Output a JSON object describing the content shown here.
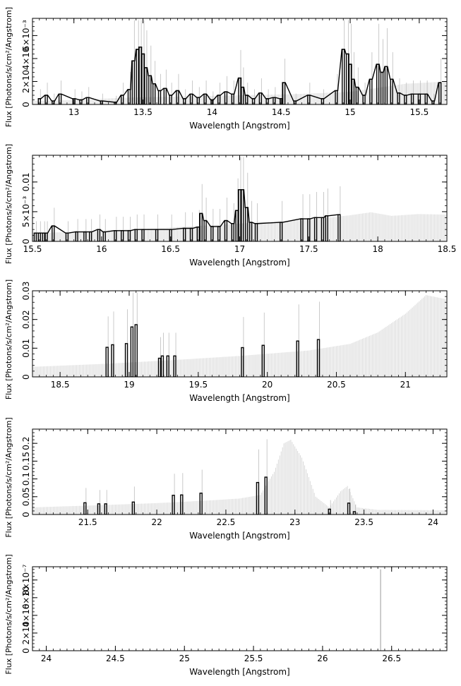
{
  "chart_data": [
    {
      "type": "line",
      "xlabel": "Wavelength [Angstrom]",
      "ylabel": "Flux [Photons/s/cm²/Angstrom]",
      "xlim": [
        12.7,
        15.7
      ],
      "ylim": [
        0,
        0.0075
      ],
      "xticks": [
        13,
        13.5,
        14,
        14.5,
        15,
        15.5
      ],
      "xtick_labels": [
        "13",
        "13.5",
        "14",
        "14.5",
        "15",
        "15.5"
      ],
      "yticks": [
        0,
        0.002,
        0.004,
        0.006
      ],
      "ytick_labels": [
        "0",
        "2×10",
        "4×10",
        "6×10⁻³"
      ],
      "model_x": [
        12.7,
        13.0,
        13.4,
        13.8,
        14.2,
        14.6,
        15.0,
        15.4,
        15.7
      ],
      "model_y": [
        0.0003,
        0.0004,
        0.0006,
        0.0007,
        0.0008,
        0.0009,
        0.0011,
        0.0018,
        0.002
      ],
      "data_x": [
        12.75,
        12.8,
        12.85,
        12.9,
        13.0,
        13.05,
        13.1,
        13.2,
        13.3,
        13.35,
        13.4,
        13.43,
        13.46,
        13.48,
        13.5,
        13.52,
        13.55,
        13.58,
        13.62,
        13.66,
        13.7,
        13.75,
        13.8,
        13.85,
        13.9,
        13.95,
        14.0,
        14.05,
        14.1,
        14.15,
        14.2,
        14.22,
        14.25,
        14.3,
        14.35,
        14.4,
        14.45,
        14.5,
        14.52,
        14.6,
        14.7,
        14.8,
        14.9,
        14.95,
        14.98,
        15.0,
        15.02,
        15.05,
        15.1,
        15.15,
        15.2,
        15.23,
        15.26,
        15.3,
        15.35,
        15.4,
        15.45,
        15.5,
        15.55,
        15.6,
        15.65
      ],
      "data_y": [
        0.0005,
        0.0008,
        0.0003,
        0.0009,
        0.0005,
        0.0004,
        0.0006,
        0.0003,
        0.0002,
        0.0008,
        0.0013,
        0.0038,
        0.0048,
        0.005,
        0.0044,
        0.0032,
        0.0025,
        0.0018,
        0.0012,
        0.0014,
        0.0008,
        0.0012,
        0.0005,
        0.0009,
        0.0006,
        0.0009,
        0.0004,
        0.0008,
        0.0011,
        0.0009,
        0.0023,
        0.0015,
        0.0008,
        0.0005,
        0.001,
        0.0005,
        0.0006,
        0.0005,
        0.0019,
        0.0003,
        0.0008,
        0.0005,
        0.0012,
        0.0048,
        0.0044,
        0.0035,
        0.0022,
        0.0015,
        0.0008,
        0.0022,
        0.0035,
        0.0028,
        0.0033,
        0.0022,
        0.001,
        0.0008,
        0.0009,
        0.0009,
        0.0009,
        0.0003,
        0.0019
      ]
    },
    {
      "type": "line",
      "xlabel": "Wavelength [Angstrom]",
      "ylabel": "Flux [Photons/s/cm²/Angstrom]",
      "xlim": [
        15.5,
        18.5
      ],
      "ylim": [
        0,
        0.0145
      ],
      "xticks": [
        15.5,
        16,
        16.5,
        17,
        17.5,
        18,
        18.5
      ],
      "xtick_labels": [
        "15.5",
        "16",
        "16.5",
        "17",
        "17.5",
        "18",
        "18.5"
      ],
      "yticks": [
        0,
        0.005,
        0.01
      ],
      "ytick_labels": [
        "0",
        "5×10⁻³",
        "0.01"
      ],
      "model_x": [
        15.5,
        15.8,
        16.1,
        16.4,
        16.7,
        17.0,
        17.3,
        17.6,
        17.8,
        17.95,
        18.1,
        18.3,
        18.5
      ],
      "model_y": [
        0.0014,
        0.0016,
        0.0019,
        0.0022,
        0.0026,
        0.003,
        0.0034,
        0.0039,
        0.0044,
        0.0049,
        0.0043,
        0.0046,
        0.0045
      ],
      "data_x": [
        15.52,
        15.55,
        15.58,
        15.6,
        15.65,
        15.75,
        15.82,
        15.88,
        15.92,
        15.98,
        16.02,
        16.1,
        16.15,
        16.2,
        16.25,
        16.3,
        16.4,
        16.5,
        16.6,
        16.65,
        16.7,
        16.72,
        16.75,
        16.8,
        16.85,
        16.9,
        16.95,
        16.98,
        17.0,
        17.02,
        17.05,
        17.08,
        17.12,
        17.3,
        17.45,
        17.5,
        17.55,
        17.6,
        17.63,
        17.72
      ],
      "data_y": [
        0.0014,
        0.0014,
        0.0014,
        0.0014,
        0.0026,
        0.0014,
        0.0016,
        0.0016,
        0.0016,
        0.002,
        0.0016,
        0.0018,
        0.0018,
        0.0018,
        0.002,
        0.002,
        0.002,
        0.002,
        0.0022,
        0.0022,
        0.0024,
        0.0047,
        0.0035,
        0.0025,
        0.0025,
        0.0035,
        0.003,
        0.0052,
        0.0087,
        0.0087,
        0.0057,
        0.0032,
        0.003,
        0.0032,
        0.0038,
        0.0038,
        0.004,
        0.004,
        0.0043,
        0.0045
      ]
    },
    {
      "type": "line",
      "xlabel": "Wavelength [Angstrom]",
      "ylabel": "Flux [Photons/s/cm²/Angstrom]",
      "xlim": [
        18.3,
        21.3
      ],
      "ylim": [
        0,
        0.03
      ],
      "xticks": [
        18.5,
        19,
        19.5,
        20,
        20.5,
        21
      ],
      "xtick_labels": [
        "18.5",
        "19",
        "19.5",
        "20",
        "20.5",
        "21"
      ],
      "yticks": [
        0,
        0.01,
        0.02,
        0.03
      ],
      "ytick_labels": [
        "0",
        "0.01",
        "0.02",
        "0.03"
      ],
      "model_x": [
        18.3,
        18.8,
        19.3,
        19.8,
        20.3,
        20.6,
        20.8,
        21.0,
        21.15,
        21.3
      ],
      "model_y": [
        0.0035,
        0.0045,
        0.0058,
        0.0073,
        0.0092,
        0.0115,
        0.0155,
        0.022,
        0.0285,
        0.027
      ],
      "data_x": [
        18.84,
        18.88,
        18.98,
        19.02,
        19.05,
        19.22,
        19.24,
        19.28,
        19.33,
        19.82,
        19.97,
        20.22,
        20.37
      ],
      "data_y": [
        0.0103,
        0.0112,
        0.0116,
        0.0174,
        0.0182,
        0.0065,
        0.0073,
        0.0073,
        0.0073,
        0.0102,
        0.011,
        0.0125,
        0.013
      ]
    },
    {
      "type": "line",
      "xlabel": "Wavelength [Angstrom]",
      "ylabel": "Flux [Photons/s/cm²/Angstrom]",
      "xlim": [
        21.1,
        24.1
      ],
      "ylim": [
        0,
        0.24
      ],
      "xticks": [
        21.5,
        22,
        22.5,
        23,
        23.5,
        24
      ],
      "xtick_labels": [
        "21.5",
        "22",
        "22.5",
        "23",
        "23.5",
        "24"
      ],
      "yticks": [
        0,
        0.05,
        0.1,
        0.15,
        0.2
      ],
      "ytick_labels": [
        "0",
        "0.05",
        "0.1",
        "0.15",
        "0.2"
      ],
      "model_x": [
        21.1,
        21.5,
        22.0,
        22.4,
        22.6,
        22.75,
        22.85,
        22.92,
        22.97,
        23.05,
        23.15,
        23.25,
        23.33,
        23.38,
        23.45,
        23.6,
        24.1
      ],
      "model_y": [
        0.02,
        0.025,
        0.032,
        0.04,
        0.045,
        0.055,
        0.12,
        0.2,
        0.21,
        0.16,
        0.05,
        0.02,
        0.065,
        0.08,
        0.02,
        0.013,
        0.012
      ],
      "data_x": [
        21.48,
        21.58,
        21.63,
        21.83,
        22.12,
        22.18,
        22.32,
        22.73,
        22.79,
        23.25,
        23.39,
        23.43
      ],
      "data_y": [
        0.033,
        0.03,
        0.03,
        0.035,
        0.054,
        0.055,
        0.06,
        0.09,
        0.105,
        0.015,
        0.032,
        0.008
      ]
    },
    {
      "type": "line",
      "xlabel": "Wavelength [Angstrom]",
      "ylabel": "Flux [Photons/s/cm²/Angstrom]",
      "xlim": [
        23.9,
        26.9
      ],
      "ylim": [
        0,
        9.5e-07
      ],
      "xticks": [
        24,
        24.5,
        25,
        25.5,
        26,
        26.5
      ],
      "xtick_labels": [
        "24",
        "24.5",
        "25",
        "25.5",
        "26",
        "26.5"
      ],
      "yticks": [
        0,
        2e-07,
        4e-07,
        6e-07,
        8e-07
      ],
      "ytick_labels": [
        "0",
        "2×10",
        "4×10",
        "6×10",
        "8×10⁻⁷"
      ],
      "model_x": [
        23.9,
        26.9
      ],
      "model_y": [
        0,
        0
      ],
      "spike_x": [
        26.42
      ],
      "spike_y": [
        9.2e-07
      ],
      "data_x": [],
      "data_y": []
    }
  ]
}
